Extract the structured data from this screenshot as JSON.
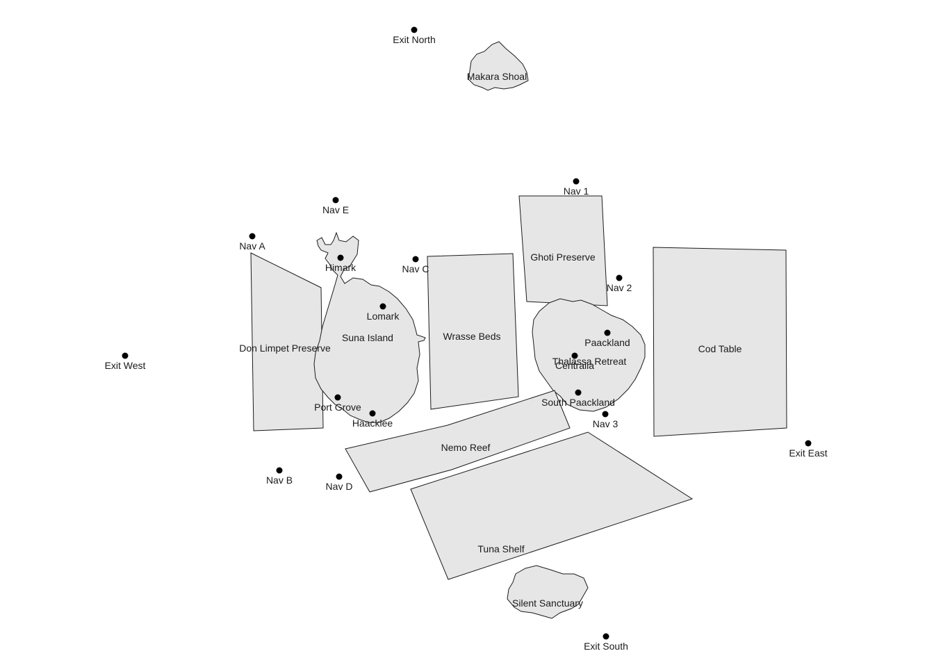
{
  "colors": {
    "region_fill": "#e6e6e6",
    "outline": "#1a1a1a",
    "point": "#000000",
    "background": "#ffffff"
  },
  "regions": [
    {
      "id": "makara-shoal",
      "label": "Makara Shoal"
    },
    {
      "id": "don-limpet-preserve",
      "label": "Don Limpet Preserve"
    },
    {
      "id": "suna-island",
      "label": "Suna Island"
    },
    {
      "id": "wrasse-beds",
      "label": "Wrasse Beds"
    },
    {
      "id": "ghoti-preserve",
      "label": "Ghoti Preserve"
    },
    {
      "id": "thalassa-retreat",
      "label": "Thalassa Retreat"
    },
    {
      "id": "cod-table",
      "label": "Cod Table"
    },
    {
      "id": "nemo-reef",
      "label": "Nemo Reef"
    },
    {
      "id": "tuna-shelf",
      "label": "Tuna Shelf"
    },
    {
      "id": "silent-sanctuary",
      "label": "Silent Sanctuary"
    }
  ],
  "points": [
    {
      "id": "exit-north",
      "label": "Exit North"
    },
    {
      "id": "exit-west",
      "label": "Exit West"
    },
    {
      "id": "exit-east",
      "label": "Exit East"
    },
    {
      "id": "exit-south",
      "label": "Exit South"
    },
    {
      "id": "nav-1",
      "label": "Nav 1"
    },
    {
      "id": "nav-2",
      "label": "Nav 2"
    },
    {
      "id": "nav-3",
      "label": "Nav 3"
    },
    {
      "id": "nav-a",
      "label": "Nav A"
    },
    {
      "id": "nav-b",
      "label": "Nav B"
    },
    {
      "id": "nav-c",
      "label": "Nav C"
    },
    {
      "id": "nav-d",
      "label": "Nav D"
    },
    {
      "id": "nav-e",
      "label": "Nav E"
    },
    {
      "id": "himark",
      "label": "Himark"
    },
    {
      "id": "lomark",
      "label": "Lomark"
    },
    {
      "id": "port-grove",
      "label": "Port Grove"
    },
    {
      "id": "haacklee",
      "label": "Haacklee"
    },
    {
      "id": "paackland",
      "label": "Paackland"
    },
    {
      "id": "centralia",
      "label": "Centralia"
    },
    {
      "id": "south-paackland",
      "label": "South Paackland"
    }
  ]
}
